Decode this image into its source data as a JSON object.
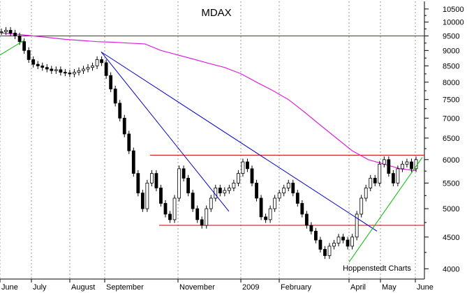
{
  "chart_data": {
    "type": "candlestick",
    "title": "MDAX",
    "watermark": "Hoppenstedt Charts",
    "y_scale": "log",
    "ylim": [
      3850,
      10800
    ],
    "y_ticks": [
      4000,
      4500,
      5000,
      5500,
      6000,
      6500,
      7000,
      7500,
      8000,
      8500,
      9000,
      9500,
      10000,
      10500
    ],
    "x_tick_labels": [
      "June",
      "July",
      "August",
      "September",
      "November",
      "2009",
      "February",
      "April",
      "May",
      "June"
    ],
    "grid": "vertical dotted",
    "closes": [
      9650,
      9700,
      9600,
      9500,
      9300,
      9000,
      8700,
      8550,
      8500,
      8450,
      8400,
      8350,
      8380,
      8300,
      8280,
      8250,
      8300,
      8350,
      8400,
      8450,
      8500,
      8700,
      8600,
      8200,
      7800,
      7400,
      7000,
      6600,
      6200,
      5700,
      5300,
      5000,
      5500,
      5700,
      5400,
      5100,
      4900,
      4800,
      5200,
      5800,
      5600,
      5300,
      5000,
      4800,
      4700,
      5000,
      5200,
      5400,
      5300,
      5350,
      5400,
      5500,
      5700,
      5950,
      5800,
      5500,
      5200,
      4850,
      4800,
      5000,
      5200,
      5300,
      5400,
      5500,
      5300,
      5100,
      4900,
      4700,
      4600,
      4450,
      4300,
      4200,
      4350,
      4400,
      4500,
      4450,
      4350,
      4500,
      4900,
      5200,
      5400,
      5600,
      5500,
      5900,
      6000,
      5700,
      5500,
      5800,
      5900,
      5950,
      5800,
      6000
    ],
    "reference_lines": [
      {
        "type": "horizontal",
        "value": 9500,
        "color": "#cc0000"
      },
      {
        "type": "horizontal",
        "value": 6100,
        "color": "#cc0000"
      },
      {
        "type": "horizontal",
        "value": 4700,
        "color": "#cc0000"
      }
    ],
    "moving_average": {
      "color": "#dd22dd",
      "values": [
        9600,
        9560,
        9500,
        9440,
        9380,
        9340,
        9300,
        9280,
        9250,
        9220,
        9000,
        8860,
        8720,
        8580,
        8450,
        8260,
        8000,
        7760,
        7500,
        7160,
        6820,
        6500,
        6200,
        6000,
        5900,
        5800,
        5760
      ]
    },
    "trend_lines": [
      {
        "color": "#0000cc",
        "from": [
          "August",
          8950
        ],
        "to": [
          "November",
          4950
        ]
      },
      {
        "color": "#0000cc",
        "from": [
          "August",
          8950
        ],
        "to": [
          "April",
          4600
        ]
      },
      {
        "color": "#00bb00",
        "from": [
          "June",
          8850
        ],
        "to": [
          "July",
          9350
        ]
      },
      {
        "color": "#00bb00",
        "from": [
          "April",
          4100
        ],
        "to": [
          "June",
          6050
        ]
      }
    ]
  }
}
